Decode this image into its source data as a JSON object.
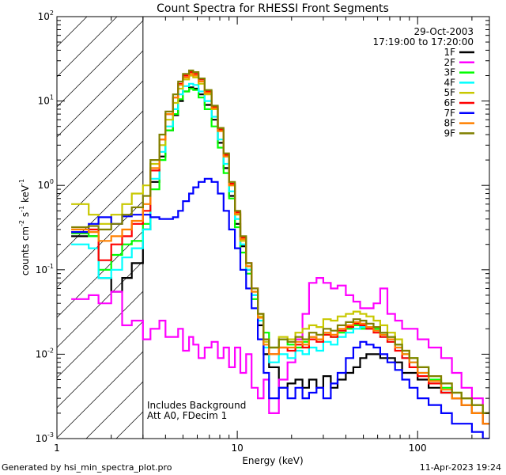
{
  "chart_data": {
    "type": "line",
    "title": "Count Spectra for RHESSI Front Segments",
    "xlabel": "Energy (keV)",
    "ylabel_html": "counts cm^-2 s^-1 keV^-1",
    "ylabel_parts": [
      "counts cm",
      "-2",
      " s",
      "-1",
      " keV",
      "-1"
    ],
    "x_scale": "log",
    "y_scale": "log",
    "xlim": [
      1,
      250
    ],
    "ylim": [
      0.001,
      100
    ],
    "x_ticks": [
      {
        "value": 1,
        "label": "1"
      },
      {
        "value": 10,
        "label": "10"
      },
      {
        "value": 100,
        "label": "100"
      }
    ],
    "y_ticks": [
      {
        "value": 0.001,
        "mant": "10",
        "exp": "-3"
      },
      {
        "value": 0.01,
        "mant": "10",
        "exp": "-2"
      },
      {
        "value": 0.1,
        "mant": "10",
        "exp": "-1"
      },
      {
        "value": 1,
        "mant": "10",
        "exp": "0"
      },
      {
        "value": 10,
        "mant": "10",
        "exp": "1"
      },
      {
        "value": 100,
        "mant": "10",
        "exp": "2"
      }
    ],
    "hatched_region_x": [
      1,
      3
    ],
    "header_lines": [
      "29-Oct-2003",
      "17:19:00 to 17:20:00"
    ],
    "annotations": [
      "Includes Background",
      "Att A0, FDecim 1"
    ],
    "energy_edges_keV": [
      1.2,
      1.5,
      1.7,
      2.0,
      2.3,
      2.6,
      3.0,
      3.3,
      3.7,
      4.0,
      4.4,
      4.7,
      5.0,
      5.4,
      5.7,
      6.1,
      6.6,
      7.2,
      7.8,
      8.4,
      9.0,
      9.7,
      10.4,
      11.2,
      12.0,
      13.0,
      14.0,
      15.0,
      17.0,
      19.0,
      21.0,
      23.0,
      25.0,
      27.5,
      30.0,
      33.0,
      36.0,
      40.0,
      44.0,
      48.0,
      52.0,
      57.0,
      62.0,
      68.0,
      75.0,
      82.0,
      90.0,
      100.0,
      115.0,
      135.0,
      155.0,
      175.0,
      200.0,
      230.0,
      250.0
    ],
    "series": [
      {
        "name": "1F",
        "color": "#000000",
        "values": [
          0.25,
          0.25,
          0.08,
          0.055,
          0.08,
          0.12,
          0.3,
          1.1,
          2.2,
          4.5,
          6.8,
          10.0,
          13.0,
          14.5,
          14.0,
          12.0,
          9.0,
          6.0,
          3.2,
          1.6,
          0.75,
          0.35,
          0.19,
          0.1,
          0.05,
          0.022,
          0.01,
          0.007,
          0.004,
          0.0045,
          0.005,
          0.004,
          0.005,
          0.004,
          0.0055,
          0.004,
          0.005,
          0.006,
          0.007,
          0.009,
          0.01,
          0.01,
          0.009,
          0.009,
          0.008,
          0.006,
          0.006,
          0.005,
          0.004,
          0.0035,
          0.003,
          0.0025,
          0.002,
          0.0015
        ]
      },
      {
        "name": "2F",
        "color": "#ff00ff",
        "values": [
          0.045,
          0.05,
          0.04,
          0.055,
          0.022,
          0.025,
          0.015,
          0.02,
          0.025,
          0.016,
          0.016,
          0.02,
          0.011,
          0.016,
          0.013,
          0.009,
          0.012,
          0.014,
          0.009,
          0.012,
          0.007,
          0.012,
          0.006,
          0.01,
          0.004,
          0.003,
          0.005,
          0.002,
          0.005,
          0.008,
          0.015,
          0.03,
          0.07,
          0.08,
          0.07,
          0.06,
          0.065,
          0.05,
          0.042,
          0.035,
          0.035,
          0.04,
          0.06,
          0.03,
          0.025,
          0.02,
          0.02,
          0.015,
          0.012,
          0.009,
          0.006,
          0.004,
          0.003,
          0.002
        ]
      },
      {
        "name": "3F",
        "color": "#00ff00",
        "values": [
          0.27,
          0.25,
          0.1,
          0.15,
          0.2,
          0.22,
          0.35,
          0.9,
          2.0,
          4.5,
          7.0,
          10.5,
          13.0,
          14.0,
          13.5,
          11.0,
          8.0,
          5.0,
          2.8,
          1.4,
          0.7,
          0.32,
          0.16,
          0.09,
          0.045,
          0.03,
          0.018,
          0.012,
          0.015,
          0.013,
          0.012,
          0.014,
          0.016,
          0.015,
          0.017,
          0.016,
          0.018,
          0.02,
          0.022,
          0.02,
          0.021,
          0.02,
          0.017,
          0.016,
          0.013,
          0.01,
          0.009,
          0.007,
          0.005,
          0.004,
          0.0035,
          0.003,
          0.0025,
          0.002
        ]
      },
      {
        "name": "4F",
        "color": "#00ffff",
        "values": [
          0.2,
          0.18,
          0.08,
          0.1,
          0.14,
          0.18,
          0.3,
          1.2,
          2.5,
          5.0,
          8.0,
          12.0,
          15.0,
          16.0,
          15.5,
          13.0,
          10.0,
          6.5,
          3.5,
          1.8,
          0.85,
          0.4,
          0.2,
          0.1,
          0.05,
          0.025,
          0.012,
          0.008,
          0.01,
          0.009,
          0.011,
          0.01,
          0.012,
          0.011,
          0.014,
          0.013,
          0.016,
          0.018,
          0.02,
          0.021,
          0.02,
          0.019,
          0.016,
          0.014,
          0.012,
          0.009,
          0.008,
          0.006,
          0.0045,
          0.0035,
          0.003,
          0.0025,
          0.002,
          0.0015
        ]
      },
      {
        "name": "5F",
        "color": "#c8c800",
        "values": [
          0.6,
          0.45,
          0.35,
          0.45,
          0.6,
          0.8,
          1.0,
          1.8,
          3.0,
          6.0,
          9.5,
          14.0,
          18.0,
          20.0,
          19.0,
          16.0,
          12.0,
          8.0,
          4.5,
          2.2,
          1.0,
          0.45,
          0.22,
          0.11,
          0.055,
          0.028,
          0.014,
          0.012,
          0.016,
          0.015,
          0.018,
          0.02,
          0.022,
          0.021,
          0.026,
          0.025,
          0.028,
          0.03,
          0.032,
          0.03,
          0.028,
          0.025,
          0.022,
          0.018,
          0.015,
          0.011,
          0.009,
          0.007,
          0.0055,
          0.0045,
          0.0035,
          0.003,
          0.0025,
          0.002
        ]
      },
      {
        "name": "6F",
        "color": "#ff0000",
        "values": [
          0.28,
          0.3,
          0.13,
          0.2,
          0.25,
          0.35,
          0.5,
          1.5,
          3.5,
          7.0,
          11.0,
          16.0,
          20.0,
          22.0,
          21.0,
          18.0,
          13.0,
          8.5,
          4.6,
          2.3,
          1.05,
          0.48,
          0.24,
          0.12,
          0.06,
          0.03,
          0.015,
          0.01,
          0.012,
          0.011,
          0.013,
          0.012,
          0.015,
          0.014,
          0.017,
          0.016,
          0.019,
          0.021,
          0.023,
          0.022,
          0.02,
          0.018,
          0.016,
          0.014,
          0.011,
          0.009,
          0.007,
          0.0055,
          0.0045,
          0.0035,
          0.003,
          0.0025,
          0.002,
          0.0015
        ]
      },
      {
        "name": "7F",
        "color": "#0000ff",
        "values": [
          0.28,
          0.35,
          0.42,
          0.35,
          0.43,
          0.45,
          0.45,
          0.42,
          0.4,
          0.4,
          0.42,
          0.5,
          0.65,
          0.8,
          0.95,
          1.1,
          1.2,
          1.1,
          0.8,
          0.5,
          0.3,
          0.18,
          0.1,
          0.06,
          0.035,
          0.015,
          0.006,
          0.003,
          0.004,
          0.003,
          0.004,
          0.003,
          0.0035,
          0.004,
          0.003,
          0.0045,
          0.006,
          0.009,
          0.012,
          0.014,
          0.013,
          0.012,
          0.01,
          0.008,
          0.0065,
          0.005,
          0.004,
          0.003,
          0.0025,
          0.002,
          0.0015,
          0.0015,
          0.0012,
          0.001
        ]
      },
      {
        "name": "8F",
        "color": "#ff8000",
        "values": [
          0.3,
          0.28,
          0.22,
          0.25,
          0.3,
          0.38,
          0.6,
          1.6,
          3.5,
          7.0,
          11.0,
          15.5,
          19.0,
          21.0,
          20.0,
          17.0,
          12.5,
          8.2,
          4.4,
          2.2,
          1.0,
          0.46,
          0.23,
          0.11,
          0.055,
          0.027,
          0.013,
          0.01,
          0.012,
          0.012,
          0.014,
          0.013,
          0.016,
          0.015,
          0.018,
          0.017,
          0.02,
          0.022,
          0.024,
          0.023,
          0.021,
          0.019,
          0.017,
          0.015,
          0.012,
          0.01,
          0.008,
          0.006,
          0.0048,
          0.0038,
          0.003,
          0.0025,
          0.002,
          0.0015
        ]
      },
      {
        "name": "9F",
        "color": "#808000",
        "values": [
          0.32,
          0.33,
          0.3,
          0.35,
          0.45,
          0.55,
          0.75,
          2.0,
          4.0,
          7.5,
          12.0,
          17.0,
          21.0,
          23.0,
          22.0,
          18.5,
          13.5,
          8.8,
          4.8,
          2.4,
          1.1,
          0.5,
          0.25,
          0.12,
          0.06,
          0.03,
          0.015,
          0.012,
          0.015,
          0.014,
          0.016,
          0.015,
          0.018,
          0.017,
          0.02,
          0.019,
          0.022,
          0.024,
          0.026,
          0.025,
          0.023,
          0.021,
          0.018,
          0.016,
          0.013,
          0.011,
          0.009,
          0.007,
          0.0055,
          0.0045,
          0.0035,
          0.003,
          0.0025,
          0.002
        ]
      }
    ]
  },
  "footer": {
    "generated_by": "Generated by hsi_min_spectra_plot.pro",
    "date": "11-Apr-2023 19:24"
  }
}
